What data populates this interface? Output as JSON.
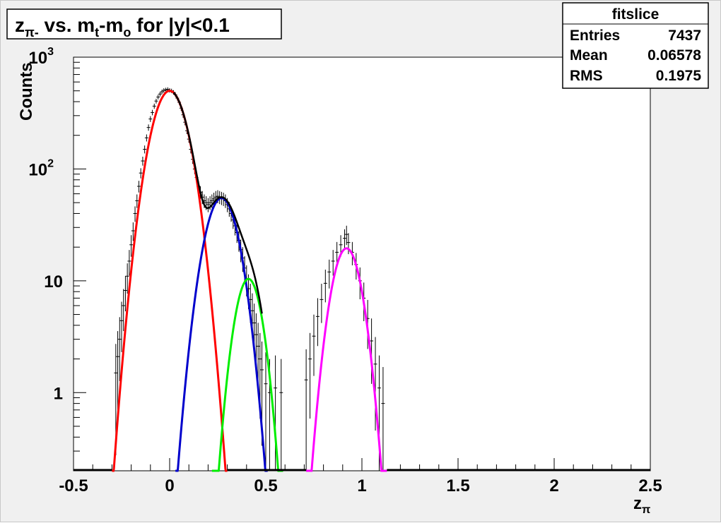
{
  "chart_data": {
    "type": "scatter",
    "title": {
      "z": "z",
      "z_sub": "π-",
      "mid": " vs. m",
      "mt_sub": "t",
      "dash": "-m",
      "mo_sub": "o",
      "tail": " for |y|<0.1"
    },
    "xlabel": "z",
    "xlabel_sub": "π",
    "ylabel": "Counts",
    "xlim": [
      -0.5,
      2.5
    ],
    "ylim": [
      0.2,
      1000
    ],
    "yscale": "log",
    "grid": false,
    "x_ticks": [
      "-0.5",
      "0",
      "0.5",
      "1",
      "1.5",
      "2",
      "2.5"
    ],
    "y_ticks": [
      {
        "value": 1,
        "label": "1"
      },
      {
        "value": 10,
        "label": "10"
      },
      {
        "value": 100,
        "label": "10",
        "sup": "2"
      },
      {
        "value": 1000,
        "label": "10",
        "sup": "3"
      }
    ],
    "stats_box": {
      "title": "fitslice",
      "rows": [
        {
          "label": "Entries",
          "value": "7437"
        },
        {
          "label": "Mean",
          "value": "0.06578"
        },
        {
          "label": "RMS",
          "value": "0.1975"
        }
      ]
    },
    "components": [
      {
        "color": "#ff0000",
        "amp": 500,
        "mean": 0.0,
        "sigma": 0.0735,
        "range": [
          -0.3,
          0.3
        ]
      },
      {
        "color": "#0000cc",
        "amp": 55,
        "mean": 0.27,
        "sigma": 0.068,
        "range": [
          0.03,
          0.51
        ]
      },
      {
        "color": "#00ee00",
        "amp": 10.4,
        "mean": 0.41,
        "sigma": 0.055,
        "range": [
          0.22,
          0.59
        ]
      },
      {
        "color": "#ff00ff",
        "amp": 19.5,
        "mean": 0.92,
        "sigma": 0.06,
        "range": [
          0.71,
          1.13
        ]
      }
    ],
    "total_color": "#000000",
    "data_points": [
      [
        -0.28,
        1.5
      ],
      [
        -0.27,
        2.1
      ],
      [
        -0.26,
        3.0
      ],
      [
        -0.25,
        4.4
      ],
      [
        -0.24,
        6.0
      ],
      [
        -0.23,
        8.2
      ],
      [
        -0.22,
        11
      ],
      [
        -0.21,
        15
      ],
      [
        -0.2,
        21
      ],
      [
        -0.19,
        28
      ],
      [
        -0.18,
        40
      ],
      [
        -0.17,
        52
      ],
      [
        -0.16,
        70
      ],
      [
        -0.15,
        92
      ],
      [
        -0.14,
        118
      ],
      [
        -0.13,
        150
      ],
      [
        -0.12,
        190
      ],
      [
        -0.11,
        235
      ],
      [
        -0.1,
        280
      ],
      [
        -0.09,
        320
      ],
      [
        -0.08,
        365
      ],
      [
        -0.07,
        405
      ],
      [
        -0.06,
        440
      ],
      [
        -0.05,
        468
      ],
      [
        -0.04,
        490
      ],
      [
        -0.03,
        505
      ],
      [
        -0.02,
        510
      ],
      [
        -0.01,
        515
      ],
      [
        0.0,
        505
      ],
      [
        0.01,
        500
      ],
      [
        0.02,
        485
      ],
      [
        0.03,
        462
      ],
      [
        0.04,
        430
      ],
      [
        0.05,
        395
      ],
      [
        0.06,
        350
      ],
      [
        0.07,
        305
      ],
      [
        0.08,
        262
      ],
      [
        0.09,
        220
      ],
      [
        0.1,
        185
      ],
      [
        0.11,
        150
      ],
      [
        0.12,
        122
      ],
      [
        0.13,
        100
      ],
      [
        0.14,
        84
      ],
      [
        0.15,
        70
      ],
      [
        0.16,
        62
      ],
      [
        0.17,
        56
      ],
      [
        0.18,
        52
      ],
      [
        0.19,
        50
      ],
      [
        0.2,
        48
      ],
      [
        0.21,
        50
      ],
      [
        0.22,
        52
      ],
      [
        0.23,
        54
      ],
      [
        0.24,
        56
      ],
      [
        0.25,
        57
      ],
      [
        0.26,
        56
      ],
      [
        0.27,
        55
      ],
      [
        0.28,
        54
      ],
      [
        0.29,
        52
      ],
      [
        0.3,
        48
      ],
      [
        0.31,
        44
      ],
      [
        0.32,
        40
      ],
      [
        0.33,
        35
      ],
      [
        0.34,
        31
      ],
      [
        0.35,
        27
      ],
      [
        0.36,
        23
      ],
      [
        0.37,
        19
      ],
      [
        0.38,
        16
      ],
      [
        0.39,
        13
      ],
      [
        0.4,
        10.5
      ],
      [
        0.41,
        8.5
      ],
      [
        0.42,
        6.8
      ],
      [
        0.43,
        5.4
      ],
      [
        0.44,
        4.2
      ],
      [
        0.45,
        3.3
      ],
      [
        0.46,
        2.6
      ],
      [
        0.47,
        2.0
      ],
      [
        0.48,
        1.6
      ],
      [
        0.5,
        1.2
      ],
      [
        0.52,
        1.0
      ],
      [
        0.55,
        1.1
      ],
      [
        0.58,
        1.0
      ],
      [
        0.71,
        1.3
      ],
      [
        0.73,
        2.0
      ],
      [
        0.75,
        3.2
      ],
      [
        0.77,
        4.8
      ],
      [
        0.79,
        6.8
      ],
      [
        0.81,
        9.5
      ],
      [
        0.83,
        12
      ],
      [
        0.85,
        15
      ],
      [
        0.87,
        18
      ],
      [
        0.89,
        21
      ],
      [
        0.91,
        24
      ],
      [
        0.92,
        26
      ],
      [
        0.93,
        22
      ],
      [
        0.95,
        18
      ],
      [
        0.97,
        14
      ],
      [
        0.99,
        10
      ],
      [
        1.01,
        7
      ],
      [
        1.03,
        4.6
      ],
      [
        1.05,
        2.9
      ],
      [
        1.07,
        1.8
      ],
      [
        1.09,
        1.1
      ],
      [
        1.11,
        0.8
      ]
    ]
  }
}
